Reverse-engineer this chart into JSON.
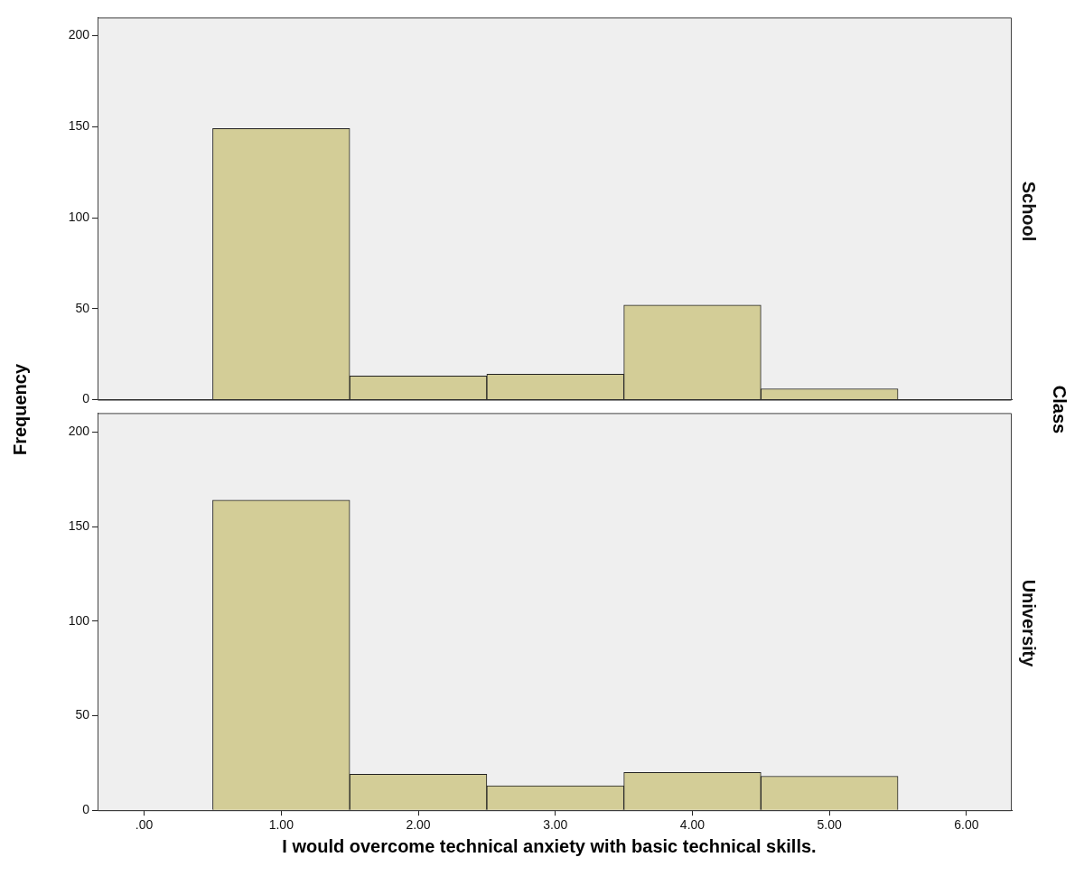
{
  "chart_data": [
    {
      "type": "histogram",
      "title": "School",
      "ylabel": "Frequency",
      "annotations": [
        "Class"
      ],
      "bins": [
        0.5,
        1.5,
        2.5,
        3.5,
        4.5,
        5.5
      ],
      "values": [
        149,
        13,
        14,
        52,
        6
      ],
      "color": "#d3cd97",
      "xlim": [
        -0.34,
        6.33
      ],
      "ylim": [
        0,
        210
      ],
      "yticks": [
        0,
        50,
        100,
        150,
        200
      ],
      "tick_labels": "y",
      "grid": false,
      "legend": false
    },
    {
      "type": "histogram",
      "title": "University",
      "xlabel": "I would overcome technical anxiety with basic technical skills.",
      "bins": [
        0.5,
        1.5,
        2.5,
        3.5,
        4.5,
        5.5
      ],
      "values": [
        164,
        19,
        13,
        20,
        18
      ],
      "color": "#d3cd97",
      "xlim": [
        -0.34,
        6.33
      ],
      "xticks": [
        {
          "value": 0,
          "label": ".00"
        },
        {
          "value": 1,
          "label": "1.00"
        },
        {
          "value": 2,
          "label": "2.00"
        },
        {
          "value": 3,
          "label": "3.00"
        },
        {
          "value": 4,
          "label": "4.00"
        },
        {
          "value": 5,
          "label": "5.00"
        },
        {
          "value": 6,
          "label": "6.00"
        }
      ],
      "ylim": [
        0,
        210
      ],
      "yticks": [
        0,
        50,
        100,
        150,
        200
      ],
      "grid": false,
      "legend": false
    }
  ]
}
